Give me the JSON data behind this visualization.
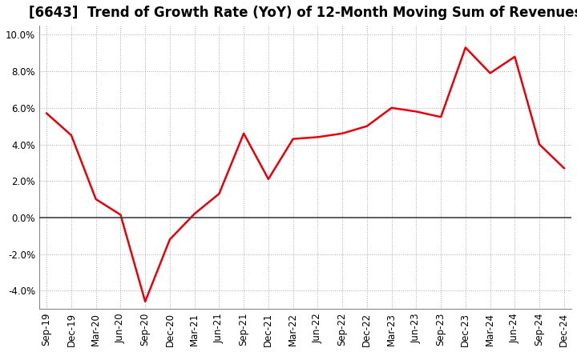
{
  "title": "[6643]  Trend of Growth Rate (YoY) of 12-Month Moving Sum of Revenues",
  "x_labels": [
    "Sep-19",
    "Dec-19",
    "Mar-20",
    "Jun-20",
    "Sep-20",
    "Dec-20",
    "Mar-21",
    "Jun-21",
    "Sep-21",
    "Dec-21",
    "Mar-22",
    "Jun-22",
    "Sep-22",
    "Dec-22",
    "Mar-23",
    "Jun-23",
    "Sep-23",
    "Dec-23",
    "Mar-24",
    "Jun-24",
    "Sep-24",
    "Dec-24"
  ],
  "y_values": [
    5.7,
    4.5,
    1.0,
    0.15,
    -4.6,
    -1.2,
    0.2,
    1.3,
    4.6,
    2.1,
    4.3,
    4.4,
    4.6,
    5.0,
    6.0,
    5.8,
    5.5,
    9.3,
    7.9,
    8.8,
    4.0,
    2.7
  ],
  "ylim": [
    -5.0,
    10.5
  ],
  "yticks": [
    -4.0,
    -2.0,
    0.0,
    2.0,
    4.0,
    6.0,
    8.0,
    10.0
  ],
  "line_color": "#e8000a",
  "background_color": "#ffffff",
  "grid_color": "#aaaaaa",
  "title_fontsize": 12,
  "tick_fontsize": 8.5
}
